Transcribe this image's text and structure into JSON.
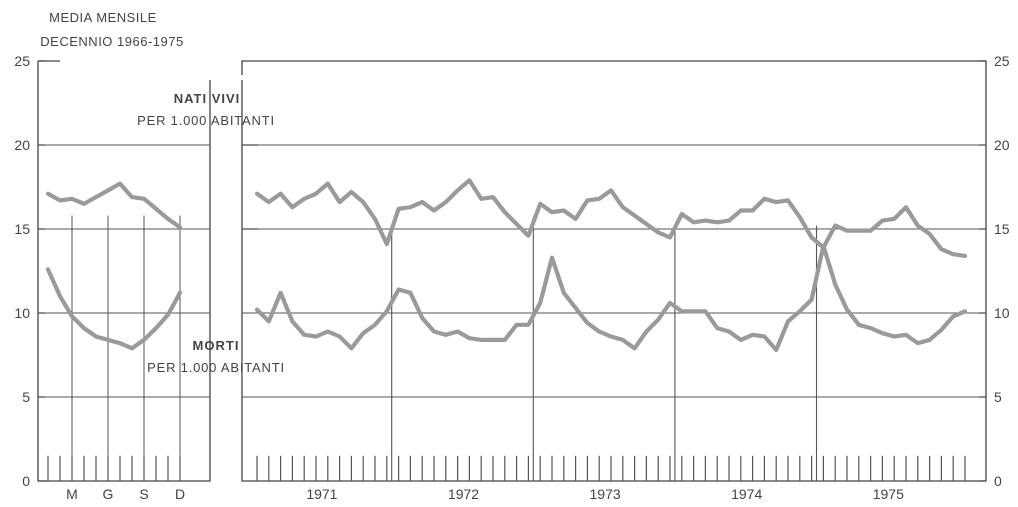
{
  "chart_data": [
    {
      "type": "line",
      "header": [
        "MEDIA MENSILE",
        "DECENNIO 1966-1975"
      ],
      "ylim": [
        0,
        25
      ],
      "yticks": [
        0,
        5,
        10,
        15,
        20,
        25
      ],
      "x_labels": [
        "M",
        "G",
        "S",
        "D"
      ],
      "annotations": {
        "births_title": "NATI VIVI",
        "births_sub": "PER 1.000 ABITANTI",
        "deaths_title": "MORTI",
        "deaths_sub": "PER 1.000 ABITANTI"
      },
      "x": [
        1,
        2,
        3,
        4,
        5,
        6,
        7,
        8,
        9,
        10,
        11,
        12
      ],
      "series": [
        {
          "key": "births",
          "values": [
            17.1,
            16.7,
            16.8,
            16.5,
            16.9,
            17.3,
            17.7,
            16.9,
            16.8,
            16.2,
            15.6,
            15.1
          ]
        },
        {
          "key": "deaths",
          "values": [
            12.6,
            11.0,
            9.8,
            9.1,
            8.6,
            8.4,
            8.2,
            7.9,
            8.4,
            9.1,
            9.9,
            11.2
          ]
        }
      ]
    },
    {
      "type": "line",
      "ylim": [
        0,
        25
      ],
      "yticks": [
        0,
        5,
        10,
        15,
        20,
        25
      ],
      "year_labels": [
        "1971",
        "1972",
        "1973",
        "1974",
        "1975"
      ],
      "series": [
        {
          "key": "births",
          "values": [
            17.1,
            16.6,
            17.1,
            16.3,
            16.8,
            17.1,
            17.7,
            16.6,
            17.2,
            16.6,
            15.6,
            14.1,
            16.2,
            16.3,
            16.6,
            16.1,
            16.6,
            17.3,
            17.9,
            16.8,
            16.9,
            16.0,
            15.3,
            14.6,
            16.5,
            16.0,
            16.1,
            15.6,
            16.7,
            16.8,
            17.3,
            16.3,
            15.8,
            15.3,
            14.8,
            14.5,
            15.9,
            15.4,
            15.5,
            15.4,
            15.5,
            16.1,
            16.1,
            16.8,
            16.6,
            16.7,
            15.7,
            14.5,
            13.9,
            15.2,
            14.9,
            14.9,
            14.9,
            15.5,
            15.6,
            16.3,
            15.2,
            14.7,
            13.8,
            13.5,
            13.4
          ]
        },
        {
          "key": "deaths",
          "values": [
            10.2,
            9.5,
            11.2,
            9.5,
            8.7,
            8.6,
            8.9,
            8.6,
            7.9,
            8.8,
            9.3,
            10.1,
            11.4,
            11.2,
            9.7,
            8.9,
            8.7,
            8.9,
            8.5,
            8.4,
            8.4,
            8.4,
            9.3,
            9.3,
            10.6,
            13.3,
            11.2,
            10.3,
            9.4,
            8.9,
            8.6,
            8.4,
            7.9,
            8.9,
            9.6,
            10.6,
            10.1,
            10.1,
            10.1,
            9.1,
            8.9,
            8.4,
            8.7,
            8.6,
            7.8,
            9.5,
            10.1,
            10.8,
            14.0,
            11.7,
            10.2,
            9.3,
            9.1,
            8.8,
            8.6,
            8.7,
            8.2,
            8.4,
            9.0,
            9.8,
            10.1
          ]
        }
      ]
    }
  ]
}
